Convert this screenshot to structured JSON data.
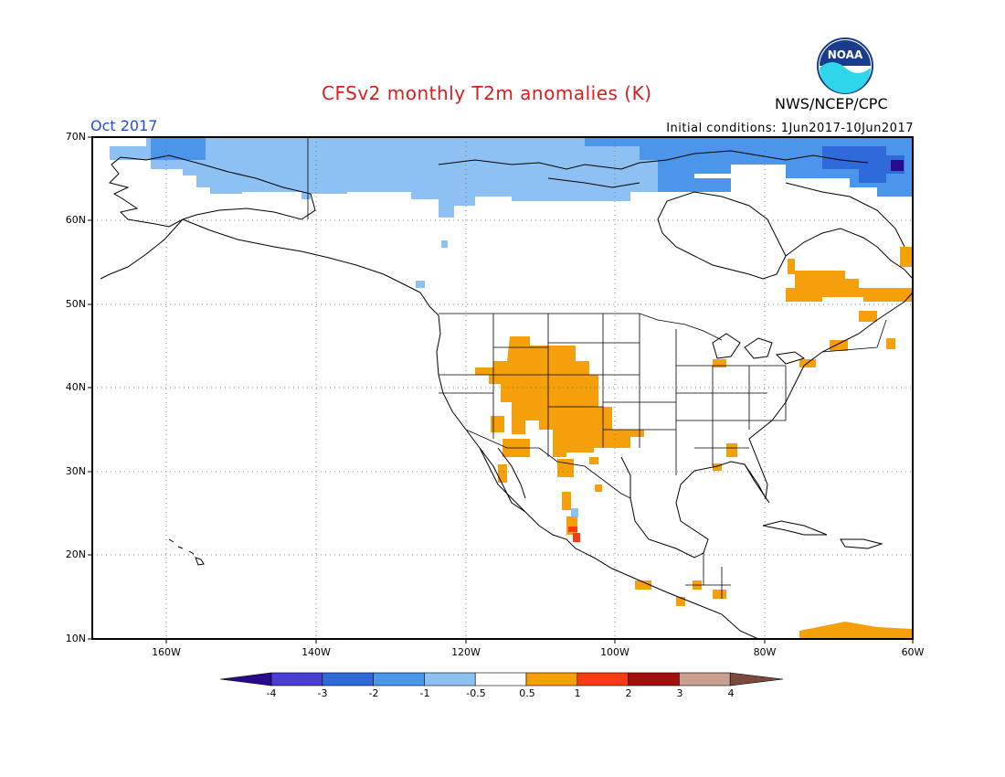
{
  "header": {
    "title": "CFSv2 monthly T2m anomalies (K)",
    "agency": "NWS/NCEP/CPC",
    "month": "Oct 2017",
    "initial_conditions": "Initial conditions: 1Jun2017-10Jun2017",
    "logo_text": "NOAA"
  },
  "lat_labels": [
    "70N",
    "60N",
    "50N",
    "40N",
    "30N",
    "20N",
    "10N"
  ],
  "lon_labels": [
    "160W",
    "140W",
    "120W",
    "100W",
    "80W",
    "60W"
  ],
  "colorbar": {
    "labels": [
      "-4",
      "-3",
      "-2",
      "-1",
      "-0.5",
      "0.5",
      "1",
      "2",
      "3",
      "4"
    ],
    "colors": [
      "#2a0a8a",
      "#4a3fd0",
      "#2e6ad9",
      "#4b95ea",
      "#8ec1f3",
      "#ffffff",
      "#f5a00a",
      "#f53c14",
      "#a00e0e",
      "#c9a08f",
      "#7a4a3c"
    ]
  },
  "colors": {
    "title": "#d81e1e",
    "month": "#1f4fd6",
    "cold_light": "#8ec1f3",
    "cold_mid": "#4b95ea",
    "cold_dark": "#2e6ad9",
    "cold_darkest": "#2a0a8a",
    "warm": "#f5a00a",
    "warm_strong": "#f53c14"
  }
}
